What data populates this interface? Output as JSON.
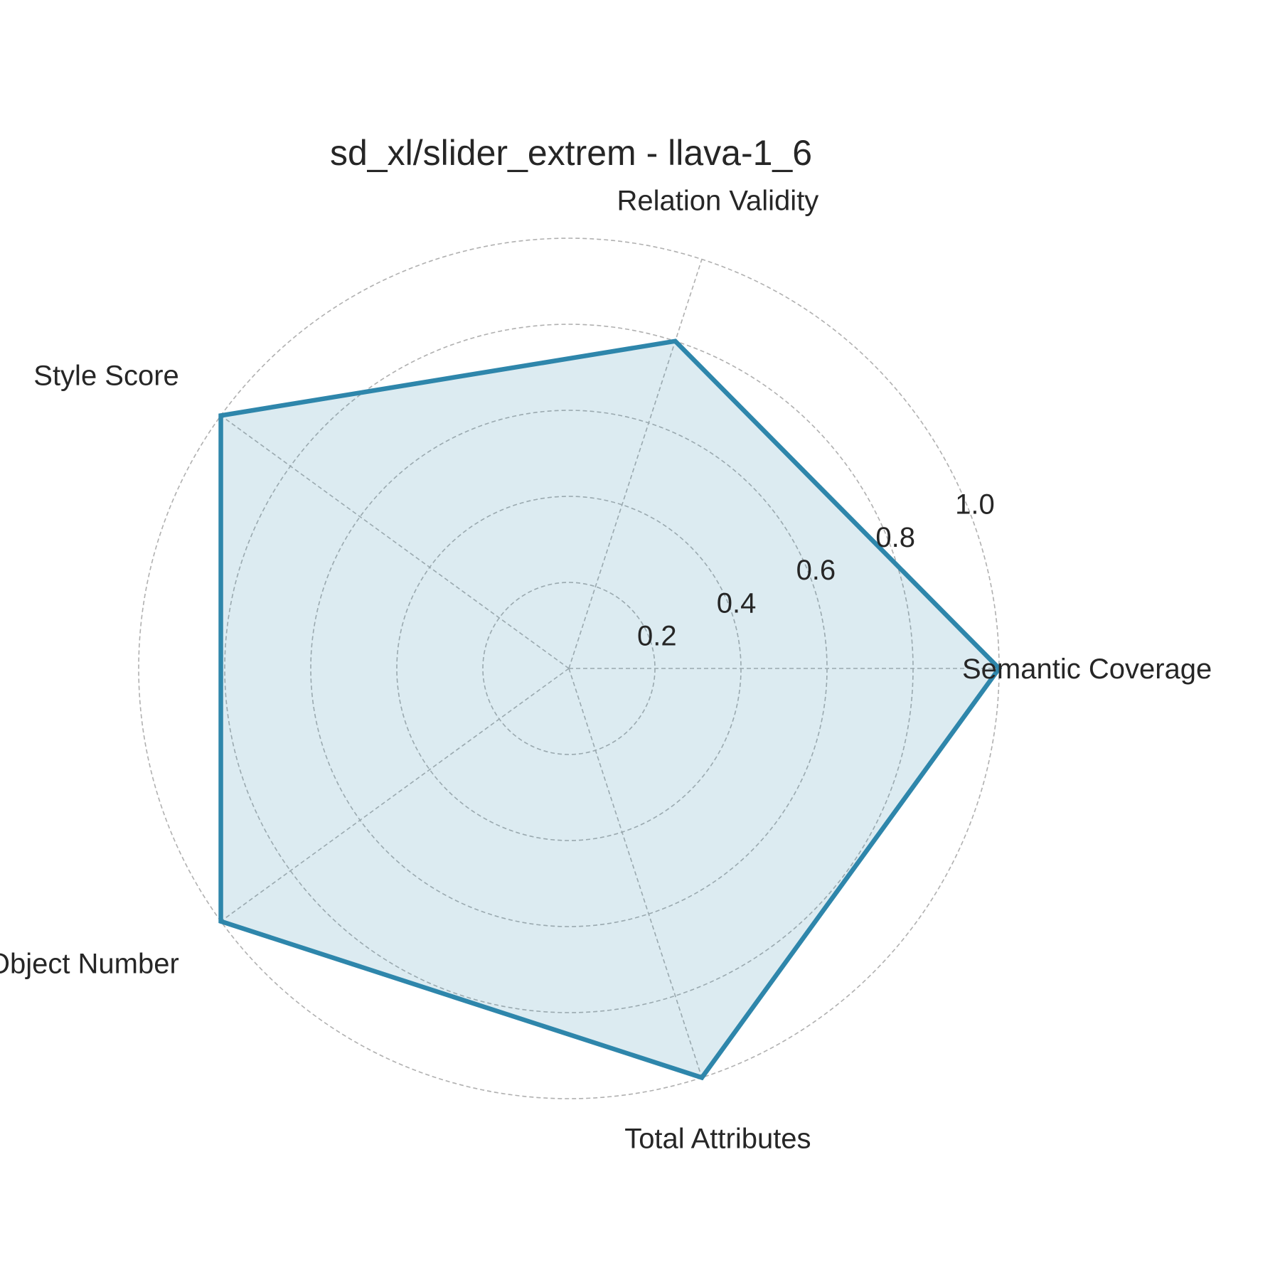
{
  "chart_data": {
    "type": "radar",
    "title": "sd_xl/slider_extrem - llava-1_6",
    "axes": [
      "Semantic Coverage",
      "Relation Validity",
      "Style Score",
      "Object Number",
      "Total Attributes"
    ],
    "series": [
      {
        "values": [
          1.0,
          0.8,
          1.0,
          1.0,
          1.0
        ]
      }
    ],
    "rlim": [
      0,
      1.0
    ],
    "r_ticks": [
      0.2,
      0.4,
      0.6,
      0.8,
      1.0
    ],
    "r_tick_labels": [
      "0.2",
      "0.4",
      "0.6",
      "0.8",
      "1.0"
    ],
    "grid": true,
    "colors": {
      "line": "#2e86ab",
      "fill": "#2e86ab",
      "grid": "#b0b0b0",
      "text": "#262626"
    }
  }
}
